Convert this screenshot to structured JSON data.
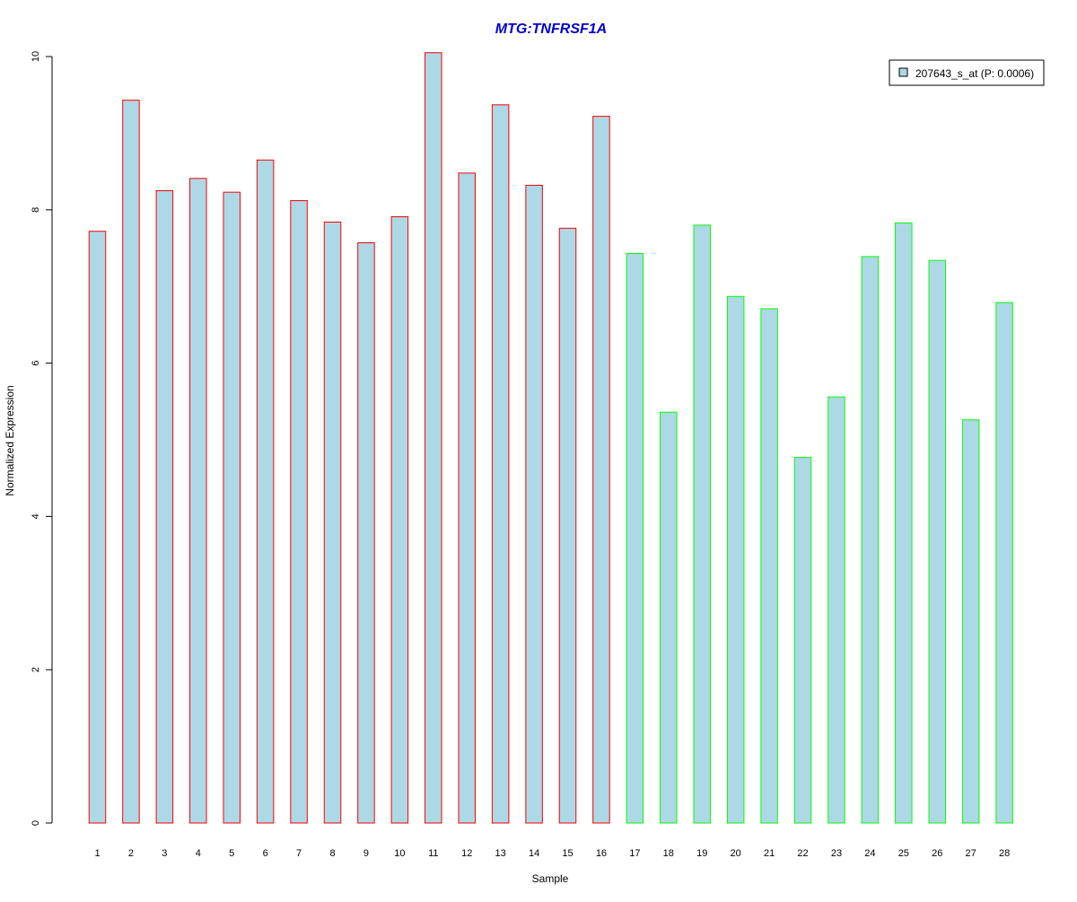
{
  "chart_data": {
    "type": "bar",
    "title": "MTG:TNFRSF1A",
    "xlabel": "Sample",
    "ylabel": "Normalized Expression",
    "ylim": [
      0,
      10
    ],
    "yticks": [
      "0",
      "2",
      "4",
      "6",
      "8",
      "10"
    ],
    "categories": [
      "1",
      "2",
      "3",
      "4",
      "5",
      "6",
      "7",
      "8",
      "9",
      "10",
      "11",
      "12",
      "13",
      "14",
      "15",
      "16",
      "17",
      "18",
      "19",
      "20",
      "21",
      "22",
      "23",
      "24",
      "25",
      "26",
      "27",
      "28"
    ],
    "series": [
      {
        "name": "207643_s_at (P: 0.0006)",
        "values": [
          7.72,
          9.43,
          8.25,
          8.41,
          8.23,
          8.65,
          8.12,
          7.84,
          7.57,
          7.91,
          10.05,
          8.48,
          9.37,
          8.32,
          7.76,
          9.22,
          7.43,
          5.36,
          7.8,
          6.87,
          6.71,
          4.77,
          5.56,
          7.39,
          7.83,
          7.34,
          5.26,
          6.79
        ]
      }
    ],
    "bar_fill": "#add8e6",
    "group_colors": {
      "group1": "#ff0000",
      "group2": "#00ff00"
    },
    "group_assignment": [
      1,
      1,
      1,
      1,
      1,
      1,
      1,
      1,
      1,
      1,
      1,
      1,
      1,
      1,
      1,
      1,
      2,
      2,
      2,
      2,
      2,
      2,
      2,
      2,
      2,
      2,
      2,
      2
    ],
    "title_color": "#0000cd",
    "legend": {
      "label": "207643_s_at (P: 0.0006)",
      "placement": "top-right"
    },
    "grid": false
  }
}
